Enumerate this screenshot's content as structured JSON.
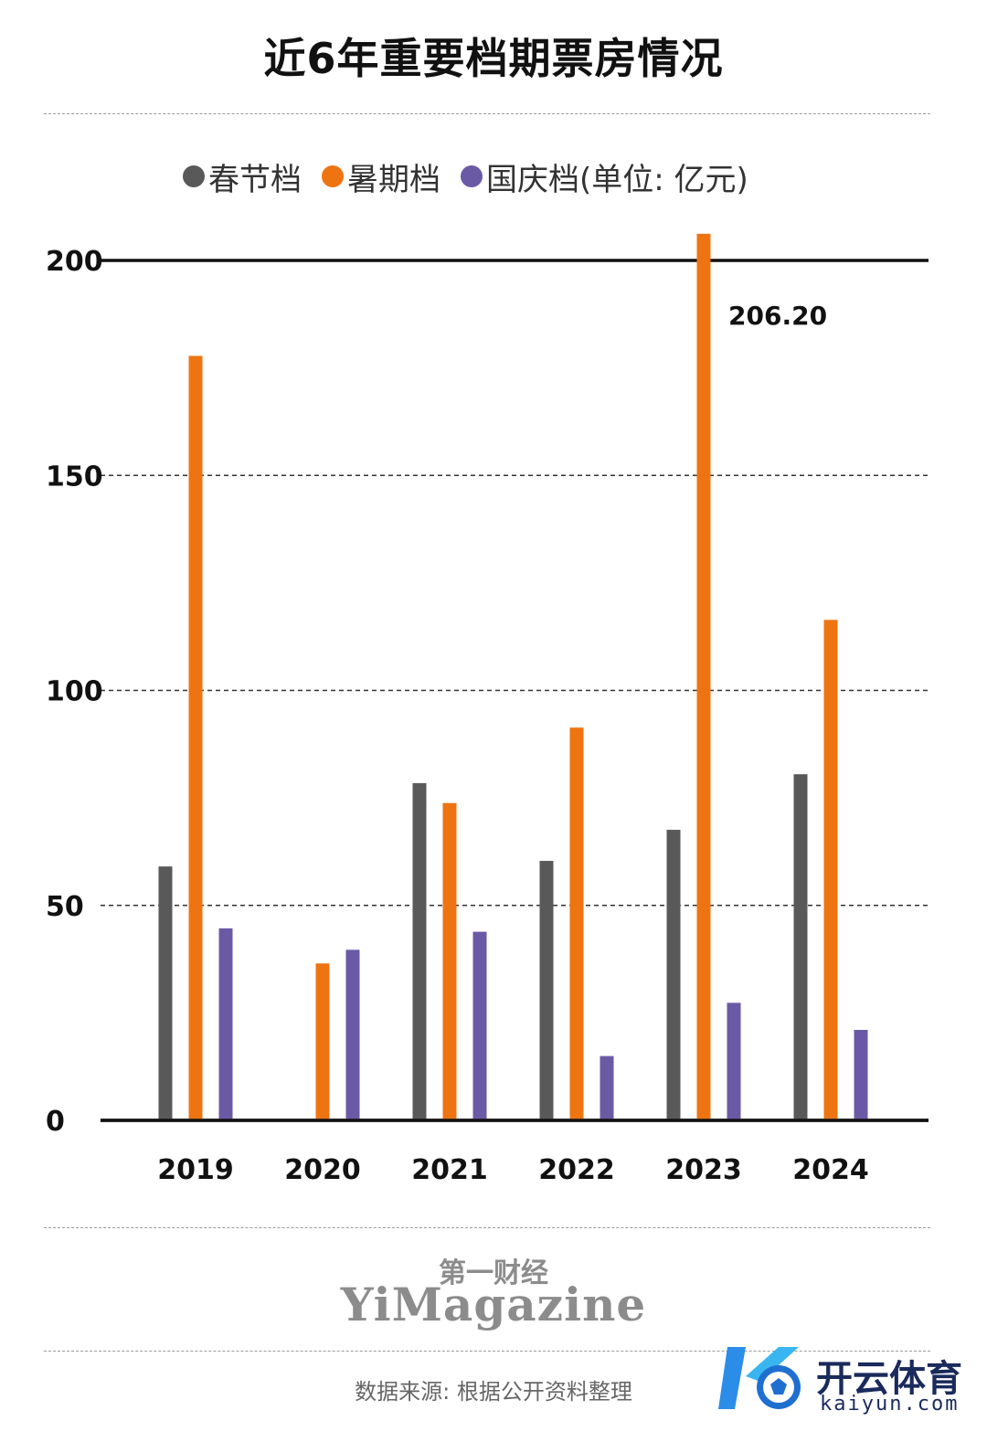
{
  "title": "近6年重要档期票房情况",
  "legend": {
    "items": [
      {
        "label": "春节档",
        "color": "#595959"
      },
      {
        "label": "暑期档",
        "color": "#ee7412"
      },
      {
        "label": "国庆档",
        "color": "#6a5aa6"
      }
    ],
    "unit": "(单位: 亿元)"
  },
  "chart_data": {
    "type": "bar",
    "title": "近6年重要档期票房情况",
    "categories": [
      "2019",
      "2020",
      "2021",
      "2022",
      "2023",
      "2024"
    ],
    "series": [
      {
        "name": "春节档",
        "color": "#595959",
        "values": [
          59.05,
          null,
          78.42,
          60.35,
          67.58,
          80.51
        ]
      },
      {
        "name": "暑期档",
        "color": "#ee7412",
        "values": [
          177.8,
          36.5,
          73.8,
          91.35,
          206.2,
          116.4
        ]
      },
      {
        "name": "国庆档",
        "color": "#6a5aa6",
        "values": [
          44.66,
          39.67,
          43.87,
          14.96,
          27.34,
          21.04
        ]
      }
    ],
    "yticks": [
      0,
      50,
      100,
      150,
      200
    ],
    "ytick_labels": [
      "0",
      "50",
      "100",
      "150",
      "200"
    ],
    "ylim": [
      0,
      210
    ],
    "annotation": {
      "label": "206.20",
      "category": "2023",
      "series": "暑期档"
    },
    "xlabel": "",
    "ylabel": "",
    "grid": "dashed"
  },
  "brand": {
    "cn": "第一财经",
    "en": "YiMagazine"
  },
  "source": "数据来源: 根据公开资料整理",
  "watermark": {
    "cn": "开云体育",
    "en": "kaiyun.com"
  }
}
